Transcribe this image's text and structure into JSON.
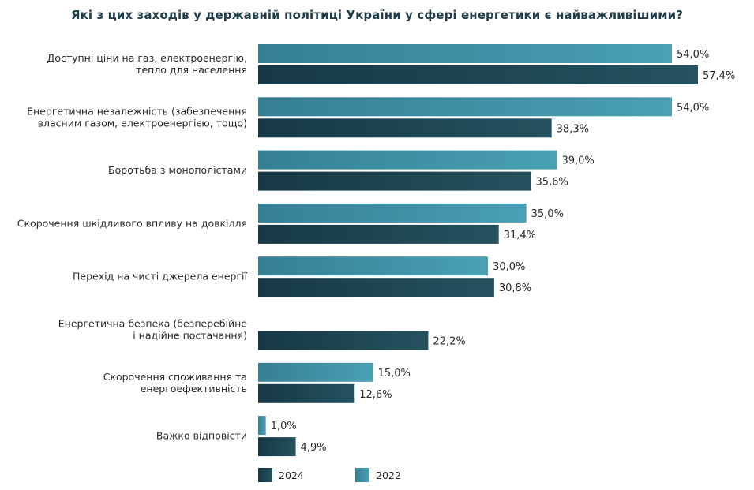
{
  "chart_data": {
    "type": "bar",
    "orientation": "horizontal",
    "title": "Які з цих заходів у державній політиці України у сфері енергетики є найважливішими?",
    "categories": [
      [
        "Доступні ціни на газ, електроенергію,",
        "тепло для населення"
      ],
      [
        "Енергетична незалежність (забезпечення",
        "власним газом, електроенергією, тощо)"
      ],
      [
        "Боротьба з монополістами"
      ],
      [
        "Скорочення шкідливого впливу на довкілля"
      ],
      [
        "Перехід на чисті джерела енергії"
      ],
      [
        "Енергетична безпека (безперебійне",
        "і надійне постачання)"
      ],
      [
        "Скорочення споживання та",
        "енергоефективність"
      ],
      [
        "Важко відповісти"
      ]
    ],
    "series": [
      {
        "name": "2022",
        "color": "#3f8fa3",
        "color_end": "#4a9fb3",
        "values": [
          54.0,
          54.0,
          39.0,
          35.0,
          30.0,
          null,
          15.0,
          1.0
        ],
        "labels": [
          "54,0%",
          "54,0%",
          "39,0%",
          "35,0%",
          "30,0%",
          "",
          "15,0%",
          "1,0%"
        ]
      },
      {
        "name": "2024",
        "color": "#1c3f4d",
        "color_end": "#24515f",
        "values": [
          57.4,
          38.3,
          35.6,
          31.4,
          30.8,
          22.2,
          12.6,
          4.9
        ],
        "labels": [
          "57,4%",
          "38,3%",
          "35,6%",
          "31,4%",
          "30,8%",
          "22,2%",
          "12,6%",
          "4,9%"
        ]
      }
    ],
    "legend": {
      "placement": "bottom-left",
      "order": [
        "2024",
        "2022"
      ]
    },
    "grid": false
  }
}
